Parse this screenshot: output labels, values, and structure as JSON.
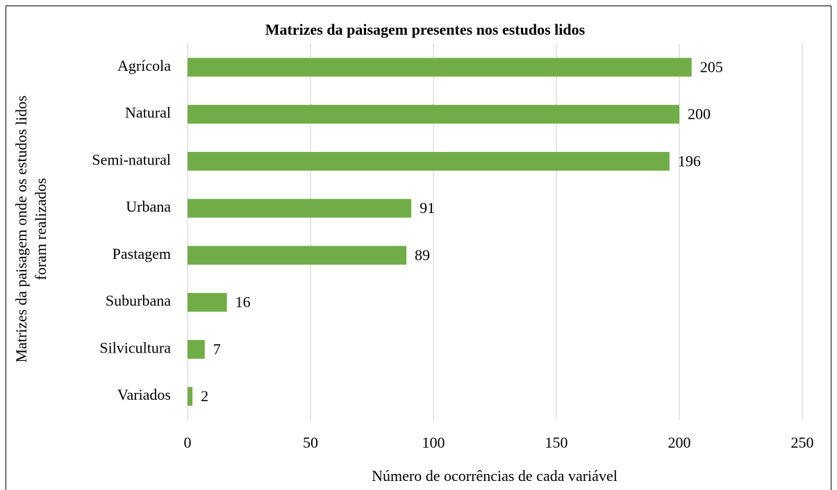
{
  "chart_data": {
    "type": "bar",
    "orientation": "horizontal",
    "title": "Matrizes da paisagem presentes nos estudos lidos",
    "x_label": "Número de ocorrências de cada variável",
    "y_label": [
      "Matrizes da paisagem onde os estudos lidos",
      "foram realizados"
    ],
    "categories": [
      "Agrícola",
      "Natural",
      "Semi-natural",
      "Urbana",
      "Pastagem",
      "Suburbana",
      "Silvicultura",
      "Variados"
    ],
    "values": [
      205,
      200,
      196,
      91,
      89,
      16,
      7,
      2
    ],
    "color": "#70ad47",
    "xlim": [
      0,
      250
    ],
    "xticks": [
      0,
      50,
      100,
      150,
      200,
      250
    ],
    "grid": true
  }
}
